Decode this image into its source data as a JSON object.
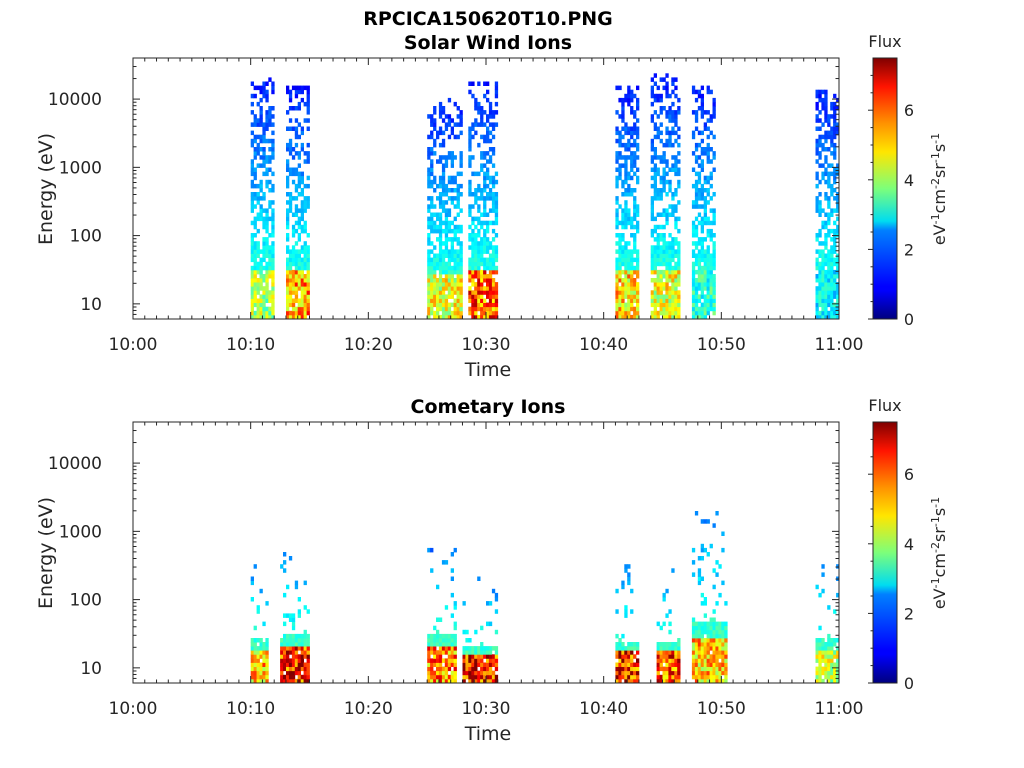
{
  "figure_title": "RPCICA150620T10.PNG",
  "chart_data": [
    {
      "type": "heatmap",
      "title": "Solar Wind Ions",
      "xlabel": "Time",
      "ylabel": "Energy (eV)",
      "x_ticks": [
        "10:00",
        "10:10",
        "10:20",
        "10:30",
        "10:40",
        "10:50",
        "11:00"
      ],
      "xlim_minutes": [
        0,
        60
      ],
      "y_scale": "log",
      "y_ticks": [
        "10",
        "100",
        "1000",
        "10000"
      ],
      "ylim": [
        6,
        40000
      ],
      "colorbar": {
        "title": "Flux",
        "label": "eV-1cm-2sr-1s-1",
        "ticks": [
          "0",
          "2",
          "4",
          "6"
        ],
        "range": [
          0,
          7.5
        ],
        "colormap": "jet"
      },
      "bursts": [
        {
          "start_min": 10.0,
          "end_min": 11.8,
          "emax": 20000,
          "peak_flux": 4.5
        },
        {
          "start_min": 13.0,
          "end_min": 14.8,
          "emax": 14000,
          "peak_flux": 6.0
        },
        {
          "start_min": 25.0,
          "end_min": 28.0,
          "emax": 10000,
          "peak_flux": 5.0
        },
        {
          "start_min": 28.5,
          "end_min": 31.0,
          "emax": 18000,
          "peak_flux": 6.5
        },
        {
          "start_min": 41.0,
          "end_min": 43.0,
          "emax": 14000,
          "peak_flux": 5.5
        },
        {
          "start_min": 44.0,
          "end_min": 46.5,
          "emax": 22000,
          "peak_flux": 5.0
        },
        {
          "start_min": 47.5,
          "end_min": 49.5,
          "emax": 15000,
          "peak_flux": 3.5
        },
        {
          "start_min": 58.0,
          "end_min": 60.0,
          "emax": 12000,
          "peak_flux": 3.0
        }
      ]
    },
    {
      "type": "heatmap",
      "title": "Cometary Ions",
      "xlabel": "Time",
      "ylabel": "Energy (eV)",
      "x_ticks": [
        "10:00",
        "10:10",
        "10:20",
        "10:30",
        "10:40",
        "10:50",
        "11:00"
      ],
      "xlim_minutes": [
        0,
        60
      ],
      "y_scale": "log",
      "y_ticks": [
        "10",
        "100",
        "1000",
        "10000"
      ],
      "ylim": [
        6,
        40000
      ],
      "colorbar": {
        "title": "Flux",
        "label": "eV-1cm-2sr-1s-1",
        "ticks": [
          "0",
          "2",
          "4",
          "6"
        ],
        "range": [
          0,
          7.5
        ],
        "colormap": "jet"
      },
      "bursts": [
        {
          "start_min": 10.0,
          "end_min": 11.5,
          "emax": 400,
          "peak_flux": 6.0
        },
        {
          "start_min": 12.5,
          "end_min": 14.8,
          "emax": 600,
          "peak_flux": 7.5
        },
        {
          "start_min": 25.0,
          "end_min": 27.5,
          "emax": 500,
          "peak_flux": 6.5
        },
        {
          "start_min": 28.0,
          "end_min": 31.0,
          "emax": 200,
          "peak_flux": 7.5
        },
        {
          "start_min": 41.0,
          "end_min": 43.0,
          "emax": 300,
          "peak_flux": 7.5
        },
        {
          "start_min": 44.5,
          "end_min": 46.5,
          "emax": 300,
          "peak_flux": 7.0
        },
        {
          "start_min": 47.5,
          "end_min": 50.5,
          "emax": 1800,
          "peak_flux": 6.0
        },
        {
          "start_min": 58.0,
          "end_min": 60.0,
          "emax": 400,
          "peak_flux": 5.0
        }
      ]
    }
  ]
}
